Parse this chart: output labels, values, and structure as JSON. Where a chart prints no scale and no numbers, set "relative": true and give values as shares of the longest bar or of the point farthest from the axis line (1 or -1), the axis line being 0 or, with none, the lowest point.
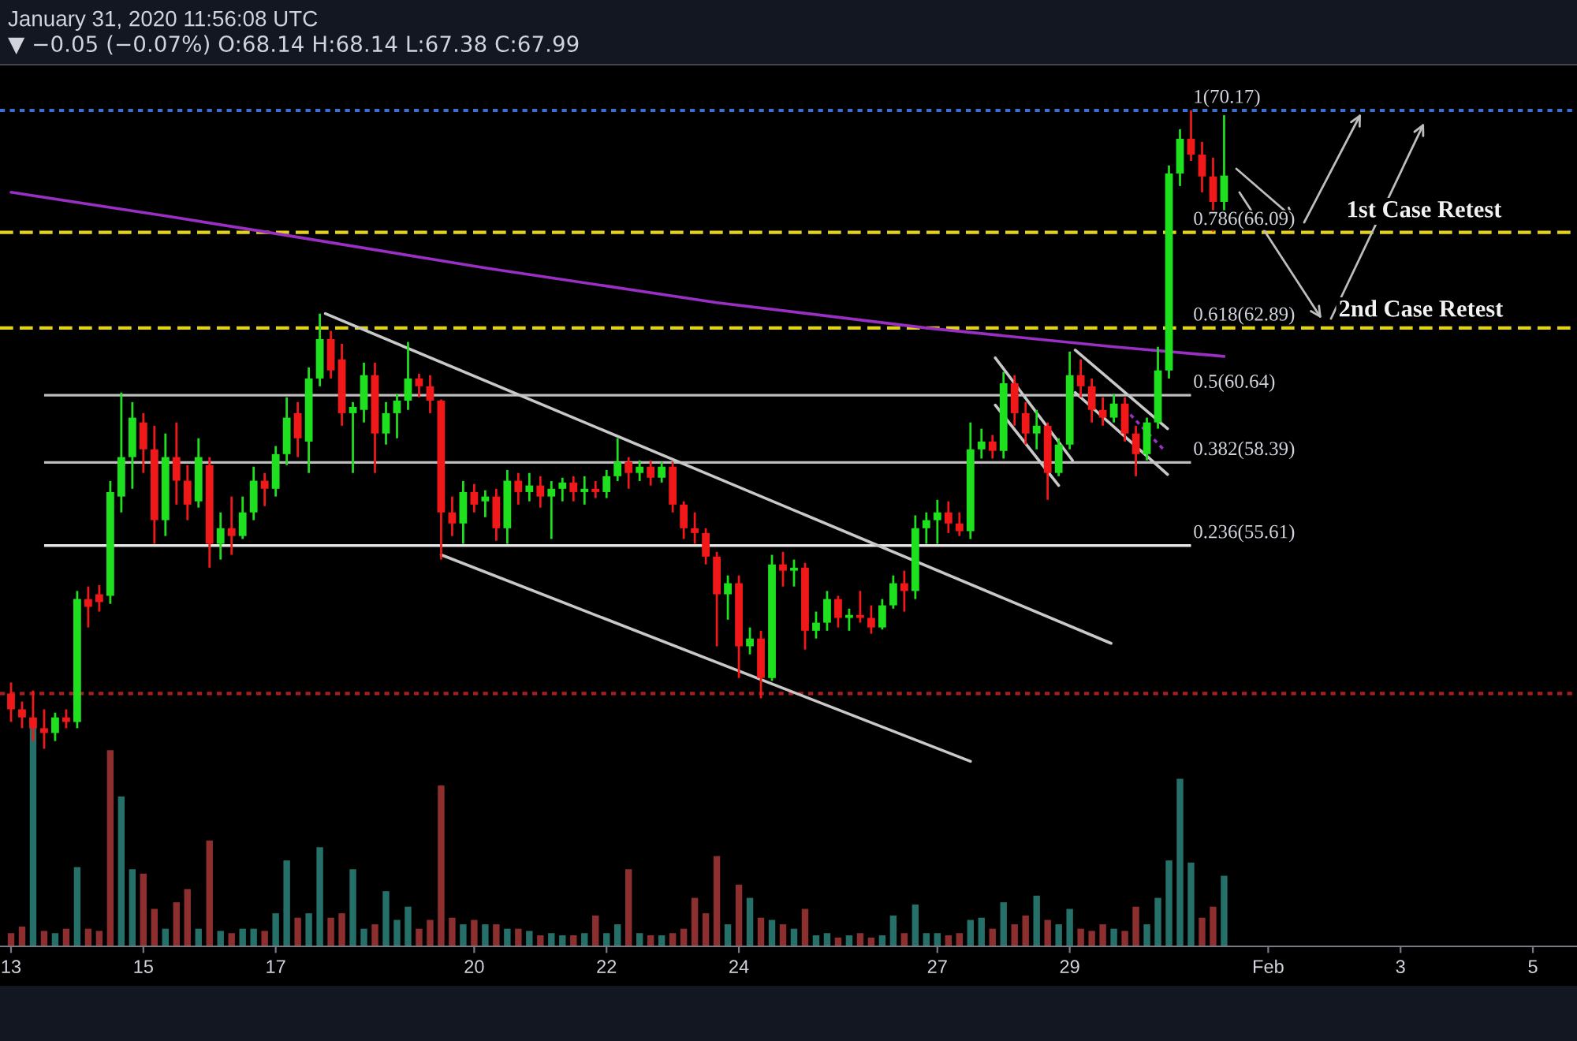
{
  "chart_data": [
    {
      "type": "candlestick",
      "annotations": [
        "January 31, 2020 11:56:08 UTC",
        "▼ −0.05 (−0.07%) O:68.14 H:68.14 L:67.38 C:67.99",
        "1st Case Retest",
        "2nd Case Retest"
      ],
      "x": [
        "2020-01-13T00:00",
        "2020-01-13T04:00",
        "2020-01-13T08:00",
        "2020-01-13T12:00",
        "2020-01-13T16:00",
        "2020-01-13T20:00",
        "2020-01-14T00:00",
        "2020-01-14T04:00",
        "2020-01-14T08:00",
        "2020-01-14T12:00",
        "2020-01-14T16:00",
        "2020-01-14T20:00",
        "2020-01-15T00:00",
        "2020-01-15T04:00",
        "2020-01-15T08:00",
        "2020-01-15T12:00",
        "2020-01-15T16:00",
        "2020-01-15T20:00",
        "2020-01-16T00:00",
        "2020-01-16T04:00",
        "2020-01-16T08:00",
        "2020-01-16T12:00",
        "2020-01-16T16:00",
        "2020-01-16T20:00",
        "2020-01-17T00:00",
        "2020-01-17T04:00",
        "2020-01-17T08:00",
        "2020-01-17T12:00",
        "2020-01-17T16:00",
        "2020-01-17T20:00",
        "2020-01-18T00:00",
        "2020-01-18T04:00",
        "2020-01-18T08:00",
        "2020-01-18T12:00",
        "2020-01-18T16:00",
        "2020-01-18T20:00",
        "2020-01-19T00:00",
        "2020-01-19T04:00",
        "2020-01-19T08:00",
        "2020-01-19T12:00",
        "2020-01-19T16:00",
        "2020-01-19T20:00",
        "2020-01-20T00:00",
        "2020-01-20T04:00",
        "2020-01-20T08:00",
        "2020-01-20T12:00",
        "2020-01-20T16:00",
        "2020-01-20T20:00",
        "2020-01-21T00:00",
        "2020-01-21T04:00",
        "2020-01-21T08:00",
        "2020-01-21T12:00",
        "2020-01-21T16:00",
        "2020-01-21T20:00",
        "2020-01-22T00:00",
        "2020-01-22T04:00",
        "2020-01-22T08:00",
        "2020-01-22T12:00",
        "2020-01-22T16:00",
        "2020-01-22T20:00",
        "2020-01-23T00:00",
        "2020-01-23T04:00",
        "2020-01-23T08:00",
        "2020-01-23T12:00",
        "2020-01-23T16:00",
        "2020-01-23T20:00",
        "2020-01-24T00:00",
        "2020-01-24T04:00",
        "2020-01-24T08:00",
        "2020-01-24T12:00",
        "2020-01-24T16:00",
        "2020-01-24T20:00",
        "2020-01-25T00:00",
        "2020-01-25T04:00",
        "2020-01-25T08:00",
        "2020-01-25T12:00",
        "2020-01-25T16:00",
        "2020-01-25T20:00",
        "2020-01-26T00:00",
        "2020-01-26T04:00",
        "2020-01-26T08:00",
        "2020-01-26T12:00",
        "2020-01-26T16:00",
        "2020-01-26T20:00",
        "2020-01-27T00:00",
        "2020-01-27T04:00",
        "2020-01-27T08:00",
        "2020-01-27T12:00",
        "2020-01-27T16:00",
        "2020-01-27T20:00",
        "2020-01-28T00:00",
        "2020-01-28T04:00",
        "2020-01-28T08:00",
        "2020-01-28T12:00",
        "2020-01-28T16:00",
        "2020-01-28T20:00",
        "2020-01-29T00:00",
        "2020-01-29T04:00",
        "2020-01-29T08:00",
        "2020-01-29T12:00",
        "2020-01-29T16:00",
        "2020-01-29T20:00",
        "2020-01-30T00:00",
        "2020-01-30T04:00",
        "2020-01-30T08:00",
        "2020-01-30T12:00",
        "2020-01-30T16:00",
        "2020-01-30T20:00",
        "2020-01-31T00:00",
        "2020-01-31T04:00",
        "2020-01-31T08:00"
      ],
      "ohlc": [
        [
          50.66,
          51.03,
          49.71,
          50.13
        ],
        [
          50.13,
          50.39,
          49.5,
          49.86
        ],
        [
          49.86,
          50.76,
          49.07,
          49.5
        ],
        [
          49.5,
          50.13,
          48.81,
          49.34
        ],
        [
          49.34,
          50.02,
          49.07,
          49.86
        ],
        [
          49.86,
          50.13,
          49.5,
          49.71
        ],
        [
          49.71,
          54.09,
          49.5,
          53.82
        ],
        [
          53.82,
          54.24,
          52.87,
          53.56
        ],
        [
          53.98,
          54.29,
          53.4,
          53.72
        ],
        [
          53.93,
          57.77,
          53.66,
          57.4
        ],
        [
          57.25,
          60.73,
          56.72,
          58.57
        ],
        [
          58.57,
          60.41,
          57.51,
          59.89
        ],
        [
          59.73,
          60.04,
          58.04,
          58.83
        ],
        [
          58.83,
          59.62,
          55.67,
          56.46
        ],
        [
          56.46,
          59.36,
          55.93,
          58.57
        ],
        [
          58.57,
          59.73,
          56.98,
          57.78
        ],
        [
          57.78,
          58.3,
          56.46,
          56.98
        ],
        [
          57.09,
          59.2,
          56.88,
          58.57
        ],
        [
          58.3,
          58.57,
          54.87,
          55.67
        ],
        [
          55.67,
          56.72,
          55.14,
          56.19
        ],
        [
          56.19,
          57.25,
          55.3,
          55.93
        ],
        [
          55.93,
          57.25,
          55.83,
          56.72
        ],
        [
          56.72,
          58.25,
          56.46,
          57.78
        ],
        [
          57.78,
          58.04,
          56.93,
          57.51
        ],
        [
          57.51,
          58.94,
          57.25,
          58.67
        ],
        [
          58.67,
          60.57,
          58.3,
          59.89
        ],
        [
          60.04,
          60.41,
          58.57,
          59.2
        ],
        [
          59.09,
          61.57,
          58.04,
          61.2
        ],
        [
          61.2,
          63.37,
          60.94,
          62.52
        ],
        [
          62.52,
          62.79,
          61.2,
          61.47
        ],
        [
          61.84,
          62.36,
          59.62,
          60.04
        ],
        [
          60.04,
          60.41,
          58.04,
          60.25
        ],
        [
          60.15,
          61.73,
          59.73,
          61.31
        ],
        [
          61.31,
          61.73,
          58.04,
          59.36
        ],
        [
          59.36,
          60.41,
          58.99,
          60.04
        ],
        [
          60.04,
          60.68,
          59.2,
          60.46
        ],
        [
          60.46,
          62.42,
          60.15,
          61.2
        ],
        [
          61.2,
          61.36,
          60.57,
          60.94
        ],
        [
          60.94,
          61.31,
          60.04,
          60.46
        ],
        [
          60.46,
          60.5,
          55.14,
          56.72
        ],
        [
          56.72,
          57.25,
          55.93,
          56.35
        ],
        [
          56.35,
          57.77,
          55.67,
          57.4
        ],
        [
          57.4,
          57.67,
          56.72,
          56.98
        ],
        [
          57.09,
          57.46,
          56.56,
          57.25
        ],
        [
          57.25,
          57.51,
          55.77,
          56.19
        ],
        [
          56.19,
          58.14,
          55.67,
          57.78
        ],
        [
          57.78,
          58.04,
          56.98,
          57.4
        ],
        [
          57.4,
          58.04,
          57.09,
          57.62
        ],
        [
          57.62,
          57.93,
          56.88,
          57.25
        ],
        [
          57.25,
          57.77,
          55.83,
          57.51
        ],
        [
          57.51,
          57.88,
          57.09,
          57.72
        ],
        [
          57.72,
          57.93,
          57.09,
          57.4
        ],
        [
          57.4,
          57.93,
          56.98,
          57.51
        ],
        [
          57.51,
          57.77,
          57.2,
          57.4
        ],
        [
          57.4,
          58.14,
          57.2,
          57.93
        ],
        [
          57.93,
          59.2,
          57.77,
          58.41
        ],
        [
          58.41,
          58.57,
          57.51,
          58.04
        ],
        [
          58.04,
          58.46,
          57.77,
          58.25
        ],
        [
          58.25,
          58.46,
          57.62,
          57.88
        ],
        [
          57.88,
          58.41,
          57.72,
          58.25
        ],
        [
          58.25,
          58.41,
          56.72,
          56.98
        ],
        [
          56.98,
          57.09,
          55.83,
          56.19
        ],
        [
          56.19,
          56.72,
          55.67,
          56.03
        ],
        [
          56.03,
          56.19,
          54.98,
          55.24
        ],
        [
          55.24,
          55.4,
          52.24,
          53.98
        ],
        [
          53.98,
          54.61,
          53.13,
          54.35
        ],
        [
          54.35,
          54.61,
          51.18,
          52.24
        ],
        [
          52.24,
          52.87,
          51.97,
          52.5
        ],
        [
          52.5,
          52.76,
          50.5,
          51.18
        ],
        [
          51.18,
          55.3,
          51.08,
          54.98
        ],
        [
          54.98,
          55.4,
          54.24,
          54.77
        ],
        [
          54.77,
          55.14,
          54.24,
          54.87
        ],
        [
          54.87,
          55.03,
          52.13,
          52.76
        ],
        [
          52.76,
          53.4,
          52.5,
          53.03
        ],
        [
          53.03,
          54.09,
          52.76,
          53.82
        ],
        [
          53.82,
          53.93,
          52.87,
          53.19
        ],
        [
          53.19,
          53.5,
          52.76,
          53.29
        ],
        [
          53.29,
          54.09,
          53.03,
          53.19
        ],
        [
          53.19,
          53.61,
          52.66,
          52.87
        ],
        [
          52.87,
          53.82,
          52.8,
          53.61
        ],
        [
          53.61,
          54.61,
          53.5,
          54.35
        ],
        [
          54.35,
          54.77,
          53.4,
          54.09
        ],
        [
          54.09,
          56.62,
          53.82,
          56.19
        ],
        [
          56.19,
          56.72,
          55.67,
          56.46
        ],
        [
          56.46,
          57.14,
          55.67,
          56.72
        ],
        [
          56.72,
          57.09,
          56.03,
          56.35
        ],
        [
          56.35,
          56.72,
          55.93,
          56.09
        ],
        [
          56.09,
          59.73,
          55.83,
          58.83
        ],
        [
          58.83,
          59.52,
          58.52,
          59.09
        ],
        [
          59.09,
          59.31,
          58.52,
          58.78
        ],
        [
          58.78,
          61.42,
          58.52,
          61.04
        ],
        [
          61.04,
          61.31,
          59.62,
          60.04
        ],
        [
          60.04,
          60.41,
          58.99,
          59.36
        ],
        [
          59.36,
          60.15,
          58.83,
          59.62
        ],
        [
          59.62,
          59.73,
          57.14,
          58.04
        ],
        [
          58.04,
          59.2,
          57.93,
          58.99
        ],
        [
          58.99,
          62.1,
          58.83,
          61.31
        ],
        [
          61.31,
          61.84,
          60.57,
          60.94
        ],
        [
          60.94,
          61.2,
          59.73,
          60.15
        ],
        [
          60.15,
          60.57,
          59.62,
          59.89
        ],
        [
          59.89,
          60.68,
          59.73,
          60.36
        ],
        [
          60.36,
          60.57,
          59.09,
          59.36
        ],
        [
          59.36,
          59.62,
          57.93,
          58.67
        ],
        [
          58.67,
          59.89,
          58.46,
          59.73
        ],
        [
          59.73,
          62.26,
          59.52,
          61.47
        ],
        [
          61.47,
          68.33,
          61.2,
          68.06
        ],
        [
          68.06,
          69.54,
          67.64,
          69.22
        ],
        [
          69.22,
          70.17,
          68.48,
          68.69
        ],
        [
          68.69,
          69.12,
          67.43,
          67.96
        ],
        [
          67.96,
          68.59,
          66.11,
          67.11
        ],
        [
          67.11,
          70.01,
          66.74,
          67.99
        ]
      ],
      "colors": [
        "#f01818",
        "#f01818",
        "#f01818",
        "#f01818",
        "#1fe01f",
        "#f01818",
        "#1fe01f",
        "#f01818",
        "#f01818",
        "#1fe01f",
        "#1fe01f",
        "#1fe01f",
        "#f01818",
        "#f01818",
        "#1fe01f",
        "#f01818",
        "#f01818",
        "#1fe01f",
        "#f01818",
        "#1fe01f",
        "#f01818",
        "#1fe01f",
        "#1fe01f",
        "#f01818",
        "#1fe01f",
        "#1fe01f",
        "#f01818",
        "#1fe01f",
        "#1fe01f",
        "#f01818",
        "#f01818",
        "#1fe01f",
        "#1fe01f",
        "#f01818",
        "#1fe01f",
        "#1fe01f",
        "#1fe01f",
        "#f01818",
        "#f01818",
        "#f01818",
        "#f01818",
        "#1fe01f",
        "#f01818",
        "#1fe01f",
        "#f01818",
        "#1fe01f",
        "#f01818",
        "#1fe01f",
        "#f01818",
        "#1fe01f",
        "#1fe01f",
        "#f01818",
        "#1fe01f",
        "#f01818",
        "#1fe01f",
        "#1fe01f",
        "#f01818",
        "#1fe01f",
        "#f01818",
        "#1fe01f",
        "#f01818",
        "#f01818",
        "#f01818",
        "#f01818",
        "#f01818",
        "#1fe01f",
        "#f01818",
        "#1fe01f",
        "#f01818",
        "#1fe01f",
        "#f01818",
        "#1fe01f",
        "#f01818",
        "#1fe01f",
        "#1fe01f",
        "#f01818",
        "#1fe01f",
        "#f01818",
        "#f01818",
        "#1fe01f",
        "#1fe01f",
        "#f01818",
        "#1fe01f",
        "#1fe01f",
        "#1fe01f",
        "#f01818",
        "#f01818",
        "#1fe01f",
        "#1fe01f",
        "#f01818",
        "#1fe01f",
        "#f01818",
        "#f01818",
        "#1fe01f",
        "#f01818",
        "#1fe01f",
        "#1fe01f",
        "#f01818",
        "#f01818",
        "#f01818",
        "#1fe01f",
        "#f01818",
        "#f01818",
        "#1fe01f",
        "#1fe01f",
        "#1fe01f",
        "#1fe01f",
        "#f01818",
        "#f01818",
        "#f01818",
        "#1fe01f"
      ],
      "series": [
        {
          "type": "line",
          "color": "#9a2fc4",
          "x": [
            "2020-01-13T00:00",
            "2020-01-15T08:00",
            "2020-01-16T20:00",
            "2020-01-20T04:00",
            "2020-01-23T16:00",
            "2020-01-26T20:00",
            "2020-01-29T16:00",
            "2020-01-31T08:00"
          ],
          "values": [
            67.43,
            66.64,
            66.11,
            64.9,
            63.74,
            62.89,
            62.26,
            61.94
          ]
        },
        {
          "type": "line",
          "color": "#c8c8c8",
          "x": [
            "2020-01-17T18:00",
            "2020-01-29T15:00"
          ],
          "values": [
            63.37,
            52.34
          ]
        },
        {
          "type": "line",
          "color": "#c8c8c8",
          "x": [
            "2020-01-19T12:00",
            "2020-01-27T12:00"
          ],
          "values": [
            55.3,
            48.39
          ]
        },
        {
          "type": "line",
          "color": "#c8c8c8",
          "x": [
            "2020-01-27T21:00",
            "2020-01-29T01:00"
          ],
          "values": [
            61.89,
            58.46
          ]
        },
        {
          "type": "line",
          "color": "#c8c8c8",
          "x": [
            "2020-01-27T21:00",
            "2020-01-28T20:00"
          ],
          "values": [
            60.31,
            57.62
          ]
        },
        {
          "type": "line",
          "color": "#c8c8c8",
          "x": [
            "2020-01-29T02:00",
            "2020-01-30T11:30"
          ],
          "values": [
            62.15,
            59.52
          ]
        },
        {
          "type": "line",
          "color": "#c8c8c8",
          "x": [
            "2020-01-29T02:00",
            "2020-01-30T11:30"
          ],
          "values": [
            60.73,
            57.99
          ]
        },
        {
          "type": "line",
          "color": "#9a2fc4",
          "line_style": "dotted",
          "x": [
            "2020-01-29T22:00",
            "2020-01-30T10:00"
          ],
          "values": [
            59.99,
            58.83
          ]
        }
      ],
      "ref_lines": [
        {
          "axis": "y",
          "value": 70.17,
          "label": "1(70.17)",
          "color": "#3d6fd0",
          "line_style": "dotted"
        },
        {
          "axis": "y",
          "value": 66.09,
          "label": "0.786(66.09)",
          "color": "#e3d21c",
          "line_style": "dashed"
        },
        {
          "axis": "y",
          "value": 62.89,
          "label": "0.618(62.89)",
          "color": "#e3d21c",
          "line_style": "dashed"
        },
        {
          "axis": "y",
          "value": 60.64,
          "label": "0.5(60.64)",
          "color": "#bdbdbd",
          "line_style": "solid"
        },
        {
          "axis": "y",
          "value": 58.39,
          "label": "0.382(58.39)",
          "color": "#bdbdbd",
          "line_style": "solid"
        },
        {
          "axis": "y",
          "value": 55.61,
          "label": "0.236(55.61)",
          "color": "#e6e6e6",
          "line_style": "solid"
        },
        {
          "axis": "y",
          "value": 50.66,
          "color": "#a81e1e",
          "line_style": "dotted"
        }
      ],
      "xlim": [
        "2020-01-12T20:00",
        "2020-02-05T16:00"
      ],
      "xticks": [
        {
          "value": "2020-01-13",
          "label": "13"
        },
        {
          "value": "2020-01-15",
          "label": "15"
        },
        {
          "value": "2020-01-17",
          "label": "17"
        },
        {
          "value": "2020-01-20",
          "label": "20"
        },
        {
          "value": "2020-01-22",
          "label": "22"
        },
        {
          "value": "2020-01-24",
          "label": "24"
        },
        {
          "value": "2020-01-27",
          "label": "27"
        },
        {
          "value": "2020-01-29",
          "label": "29"
        },
        {
          "value": "2020-02-01",
          "label": "Feb"
        },
        {
          "value": "2020-02-03",
          "label": "3"
        },
        {
          "value": "2020-02-05",
          "label": "5"
        }
      ],
      "ylim": [
        42.2,
        71.7
      ],
      "tick_labels": "x"
    },
    {
      "type": "bar",
      "relative": true,
      "tick_labels": false,
      "xlim": [
        "2020-01-12T20:00",
        "2020-02-05T16:00"
      ],
      "x": [
        "2020-01-13T00:00",
        "2020-01-13T04:00",
        "2020-01-13T08:00",
        "2020-01-13T12:00",
        "2020-01-13T16:00",
        "2020-01-13T20:00",
        "2020-01-14T00:00",
        "2020-01-14T04:00",
        "2020-01-14T08:00",
        "2020-01-14T12:00",
        "2020-01-14T16:00",
        "2020-01-14T20:00",
        "2020-01-15T00:00",
        "2020-01-15T04:00",
        "2020-01-15T08:00",
        "2020-01-15T12:00",
        "2020-01-15T16:00",
        "2020-01-15T20:00",
        "2020-01-16T00:00",
        "2020-01-16T04:00",
        "2020-01-16T08:00",
        "2020-01-16T12:00",
        "2020-01-16T16:00",
        "2020-01-16T20:00",
        "2020-01-17T00:00",
        "2020-01-17T04:00",
        "2020-01-17T08:00",
        "2020-01-17T12:00",
        "2020-01-17T16:00",
        "2020-01-17T20:00",
        "2020-01-18T00:00",
        "2020-01-18T04:00",
        "2020-01-18T08:00",
        "2020-01-18T12:00",
        "2020-01-18T16:00",
        "2020-01-18T20:00",
        "2020-01-19T00:00",
        "2020-01-19T04:00",
        "2020-01-19T08:00",
        "2020-01-19T12:00",
        "2020-01-19T16:00",
        "2020-01-19T20:00",
        "2020-01-20T00:00",
        "2020-01-20T04:00",
        "2020-01-20T08:00",
        "2020-01-20T12:00",
        "2020-01-20T16:00",
        "2020-01-20T20:00",
        "2020-01-21T00:00",
        "2020-01-21T04:00",
        "2020-01-21T08:00",
        "2020-01-21T12:00",
        "2020-01-21T16:00",
        "2020-01-21T20:00",
        "2020-01-22T00:00",
        "2020-01-22T04:00",
        "2020-01-22T08:00",
        "2020-01-22T12:00",
        "2020-01-22T16:00",
        "2020-01-22T20:00",
        "2020-01-23T00:00",
        "2020-01-23T04:00",
        "2020-01-23T08:00",
        "2020-01-23T12:00",
        "2020-01-23T16:00",
        "2020-01-23T20:00",
        "2020-01-24T00:00",
        "2020-01-24T04:00",
        "2020-01-24T08:00",
        "2020-01-24T12:00",
        "2020-01-24T16:00",
        "2020-01-24T20:00",
        "2020-01-25T00:00",
        "2020-01-25T04:00",
        "2020-01-25T08:00",
        "2020-01-25T12:00",
        "2020-01-25T16:00",
        "2020-01-25T20:00",
        "2020-01-26T00:00",
        "2020-01-26T04:00",
        "2020-01-26T08:00",
        "2020-01-26T12:00",
        "2020-01-26T16:00",
        "2020-01-26T20:00",
        "2020-01-27T00:00",
        "2020-01-27T04:00",
        "2020-01-27T08:00",
        "2020-01-27T12:00",
        "2020-01-27T16:00",
        "2020-01-27T20:00",
        "2020-01-28T00:00",
        "2020-01-28T04:00",
        "2020-01-28T08:00",
        "2020-01-28T12:00",
        "2020-01-28T16:00",
        "2020-01-28T20:00",
        "2020-01-29T00:00",
        "2020-01-29T04:00",
        "2020-01-29T08:00",
        "2020-01-29T12:00",
        "2020-01-29T16:00",
        "2020-01-29T20:00",
        "2020-01-30T00:00",
        "2020-01-30T04:00",
        "2020-01-30T08:00",
        "2020-01-30T12:00",
        "2020-01-30T16:00",
        "2020-01-30T20:00",
        "2020-01-31T00:00",
        "2020-01-31T04:00",
        "2020-01-31T08:00"
      ],
      "values": [
        0.06,
        0.09,
        1,
        0.07,
        0.06,
        0.08,
        0.36,
        0.08,
        0.07,
        0.89,
        0.68,
        0.35,
        0.33,
        0.17,
        0.08,
        0.2,
        0.26,
        0.08,
        0.48,
        0.07,
        0.06,
        0.08,
        0.08,
        0.07,
        0.15,
        0.39,
        0.13,
        0.15,
        0.45,
        0.13,
        0.15,
        0.35,
        0.08,
        0.1,
        0.25,
        0.12,
        0.18,
        0.08,
        0.12,
        0.73,
        0.13,
        0.1,
        0.12,
        0.1,
        0.1,
        0.08,
        0.08,
        0.07,
        0.05,
        0.06,
        0.05,
        0.05,
        0.06,
        0.14,
        0.06,
        0.1,
        0.35,
        0.06,
        0.05,
        0.05,
        0.06,
        0.08,
        0.22,
        0.15,
        0.41,
        0.1,
        0.28,
        0.22,
        0.13,
        0.12,
        0.1,
        0.08,
        0.17,
        0.05,
        0.06,
        0.04,
        0.05,
        0.06,
        0.04,
        0.05,
        0.14,
        0.06,
        0.19,
        0.06,
        0.06,
        0.05,
        0.06,
        0.12,
        0.13,
        0.08,
        0.2,
        0.1,
        0.14,
        0.23,
        0.12,
        0.1,
        0.17,
        0.08,
        0.07,
        0.1,
        0.08,
        0.07,
        0.18,
        0.1,
        0.22,
        0.39,
        0.76,
        0.38,
        0.13,
        0.18,
        0.32
      ],
      "colors": [
        "#8e2f2f",
        "#8e2f2f",
        "#26706a",
        "#8e2f2f",
        "#26706a",
        "#8e2f2f",
        "#26706a",
        "#8e2f2f",
        "#8e2f2f",
        "#8e2f2f",
        "#26706a",
        "#26706a",
        "#8e2f2f",
        "#8e2f2f",
        "#26706a",
        "#8e2f2f",
        "#8e2f2f",
        "#26706a",
        "#8e2f2f",
        "#26706a",
        "#8e2f2f",
        "#26706a",
        "#26706a",
        "#8e2f2f",
        "#26706a",
        "#26706a",
        "#8e2f2f",
        "#26706a",
        "#26706a",
        "#8e2f2f",
        "#8e2f2f",
        "#26706a",
        "#26706a",
        "#8e2f2f",
        "#26706a",
        "#26706a",
        "#26706a",
        "#8e2f2f",
        "#8e2f2f",
        "#8e2f2f",
        "#8e2f2f",
        "#26706a",
        "#8e2f2f",
        "#26706a",
        "#8e2f2f",
        "#26706a",
        "#8e2f2f",
        "#26706a",
        "#8e2f2f",
        "#26706a",
        "#26706a",
        "#8e2f2f",
        "#26706a",
        "#8e2f2f",
        "#26706a",
        "#26706a",
        "#8e2f2f",
        "#26706a",
        "#8e2f2f",
        "#26706a",
        "#8e2f2f",
        "#8e2f2f",
        "#8e2f2f",
        "#8e2f2f",
        "#8e2f2f",
        "#26706a",
        "#8e2f2f",
        "#26706a",
        "#8e2f2f",
        "#26706a",
        "#8e2f2f",
        "#26706a",
        "#8e2f2f",
        "#26706a",
        "#26706a",
        "#8e2f2f",
        "#26706a",
        "#8e2f2f",
        "#8e2f2f",
        "#26706a",
        "#26706a",
        "#8e2f2f",
        "#26706a",
        "#26706a",
        "#26706a",
        "#8e2f2f",
        "#8e2f2f",
        "#26706a",
        "#26706a",
        "#8e2f2f",
        "#26706a",
        "#8e2f2f",
        "#8e2f2f",
        "#26706a",
        "#8e2f2f",
        "#26706a",
        "#26706a",
        "#8e2f2f",
        "#8e2f2f",
        "#8e2f2f",
        "#26706a",
        "#8e2f2f",
        "#8e2f2f",
        "#26706a",
        "#26706a",
        "#26706a",
        "#26706a",
        "#26706a",
        "#8e2f2f",
        "#8e2f2f",
        "#26706a"
      ]
    }
  ]
}
